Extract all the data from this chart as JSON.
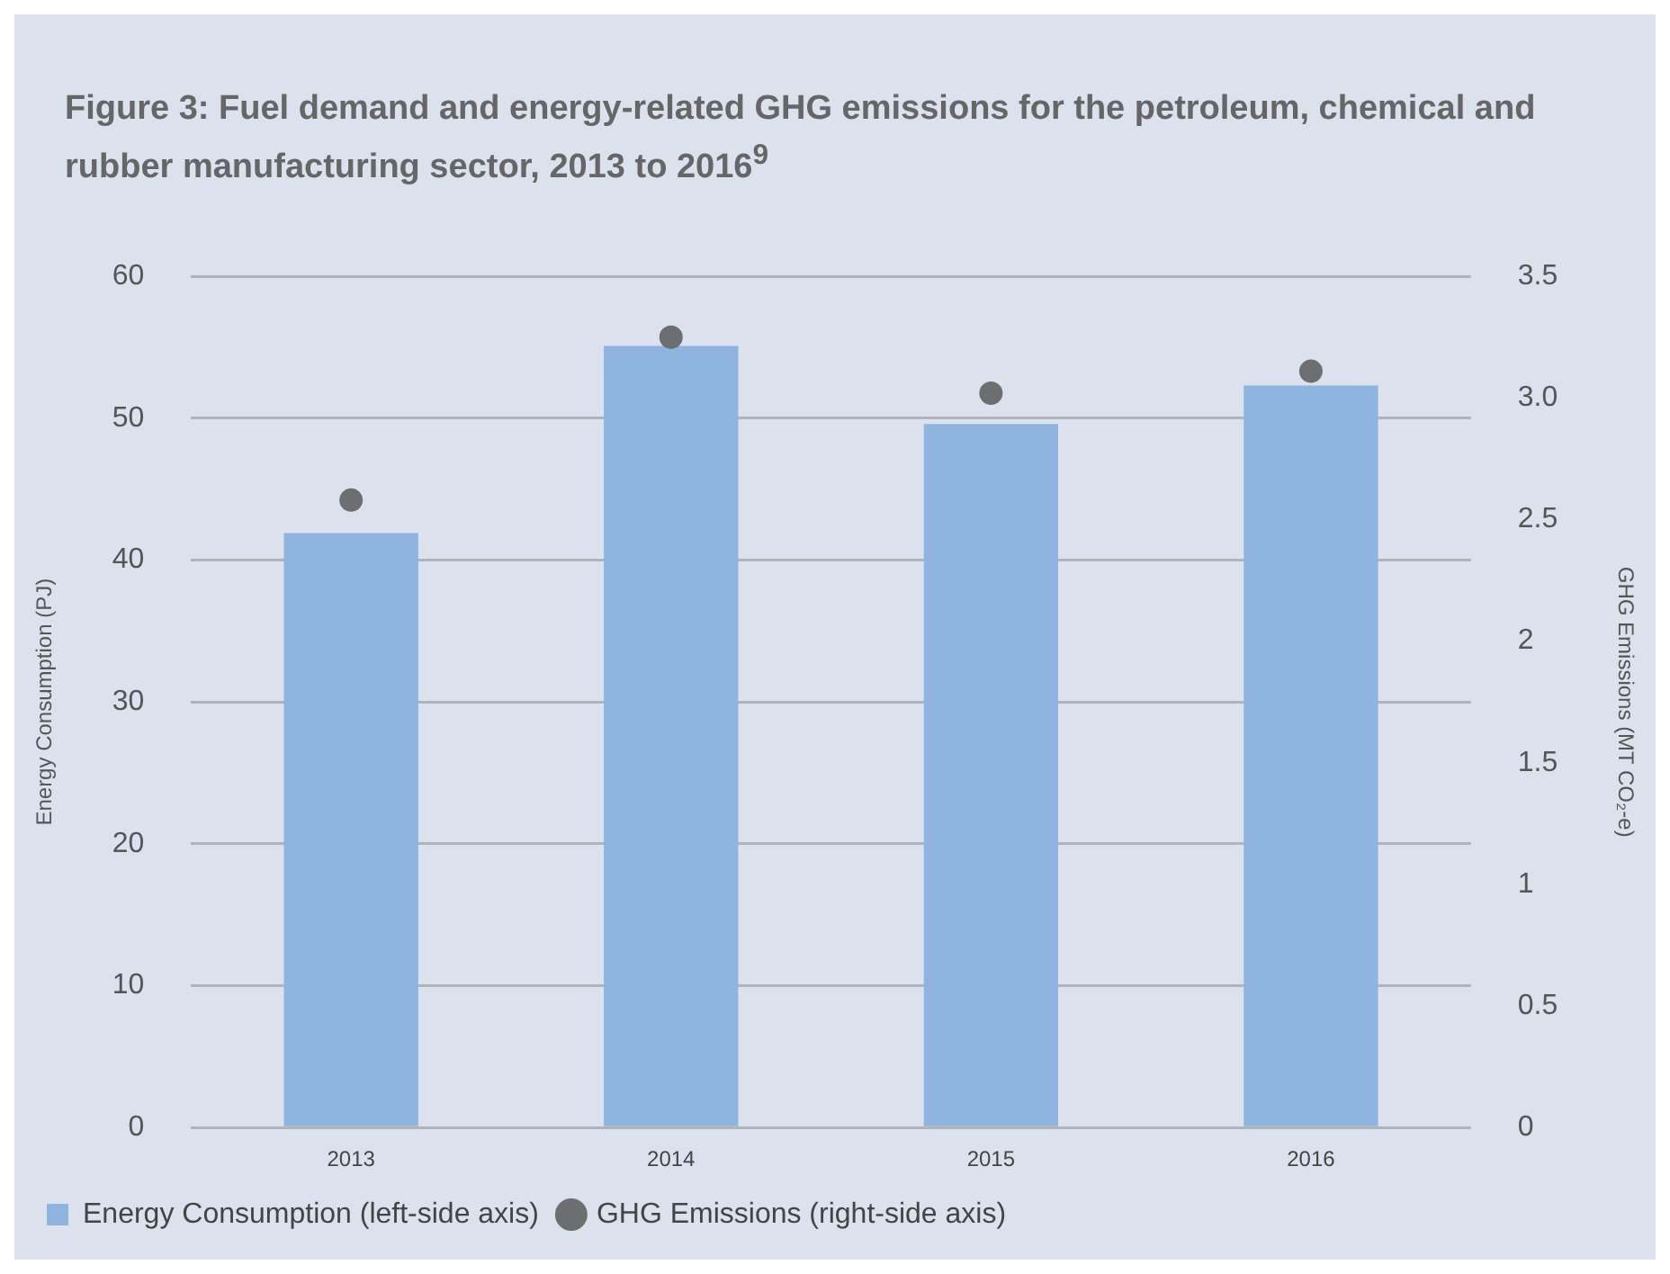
{
  "chart_data": {
    "type": "bar",
    "title": "Figure 3: Fuel demand and energy-related GHG emissions for the petroleum, chemical and rubber manufacturing sector, 2013 to 2016$^{9}$",
    "ylabel": "Energy Consumption (PJ)",
    "y2label": "GHG Emissions (MT CO₂-e)",
    "categories": [
      "2013",
      "2014",
      "2015",
      "2016"
    ],
    "series": [
      {
        "name": "Energy Consumption (left-side axis)",
        "color": "#8fb4e0",
        "values": [
          41.9,
          55.1,
          49.6,
          52.3
        ]
      },
      {
        "name": "GHG Emissions (right-side axis)",
        "type": "scatter",
        "axis": "y2",
        "color": "#6d6e70",
        "values": [
          2.58,
          3.25,
          3.02,
          3.11
        ]
      }
    ],
    "ylim": [
      0,
      60
    ],
    "yticks": [
      0,
      10,
      20,
      30,
      40,
      50,
      60
    ],
    "y2lim": [
      0,
      3.5
    ],
    "y2ticks": [
      0,
      0.5,
      1,
      1.5,
      2,
      {
        "value": 2.5,
        "label": "2.5"
      },
      {
        "value": 3,
        "label": "3.0"
      },
      {
        "value": 3.5,
        "label": "3.5"
      }
    ],
    "grid": "y",
    "legend": "bottom",
    "marker": "circle"
  }
}
